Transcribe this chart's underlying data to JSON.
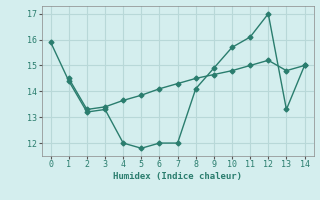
{
  "line1_x": [
    0,
    1,
    2,
    3,
    4,
    5,
    6,
    7,
    8,
    9,
    10,
    11,
    12,
    13,
    14
  ],
  "line1_y": [
    15.9,
    14.4,
    13.2,
    13.3,
    12.0,
    11.8,
    12.0,
    12.0,
    14.1,
    14.9,
    15.7,
    16.1,
    17.0,
    13.3,
    15.0
  ],
  "line2_x": [
    1,
    2,
    3,
    4,
    5,
    6,
    7,
    8,
    9,
    10,
    11,
    12,
    13,
    14
  ],
  "line2_y": [
    14.5,
    13.3,
    13.4,
    13.65,
    13.85,
    14.1,
    14.3,
    14.5,
    14.65,
    14.8,
    15.0,
    15.2,
    14.8,
    15.0
  ],
  "line_color": "#2a7d6e",
  "bg_color": "#d4eeee",
  "grid_color": "#b8d8d8",
  "xlabel": "Humidex (Indice chaleur)",
  "xlim": [
    -0.5,
    14.5
  ],
  "ylim": [
    11.5,
    17.3
  ],
  "yticks": [
    12,
    13,
    14,
    15,
    16,
    17
  ],
  "xticks": [
    0,
    1,
    2,
    3,
    4,
    5,
    6,
    7,
    8,
    9,
    10,
    11,
    12,
    13,
    14
  ],
  "marker": "D",
  "markersize": 2.5,
  "linewidth": 1.0
}
